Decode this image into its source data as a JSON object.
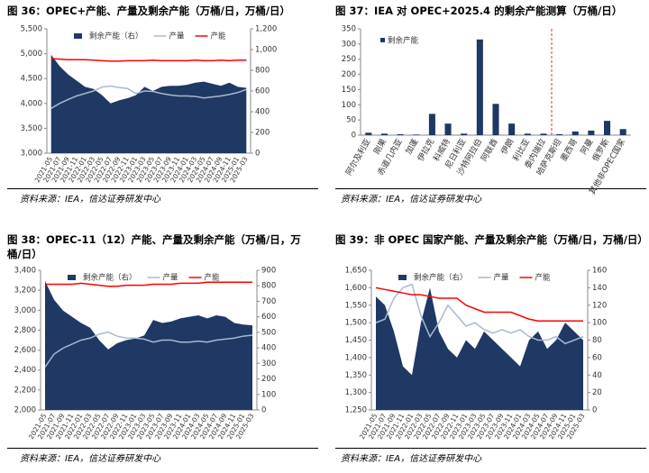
{
  "chart_data": [
    {
      "type": "combo",
      "title": "图 36：OPEC+产能、产量及剩余产能（万桶/日，万桶/日）",
      "source": "资料来源：IEA，信达证券研发中心",
      "categories": [
        "2021-05",
        "2021-07",
        "2021-09",
        "2021-11",
        "2022-01",
        "2022-03",
        "2022-05",
        "2022-07",
        "2022-09",
        "2022-11",
        "2023-01",
        "2023-03",
        "2023-05",
        "2023-07",
        "2023-09",
        "2023-11",
        "2024-01",
        "2024-03",
        "2024-05",
        "2024-07",
        "2024-09",
        "2024-11",
        "2025-01",
        "2025-03"
      ],
      "ylim": [
        3000,
        5500
      ],
      "yticks": [
        {
          "value": 3000,
          "label": "3,000"
        },
        {
          "value": 3500,
          "label": "3,500"
        },
        {
          "value": 4000,
          "label": "4,000"
        },
        {
          "value": 4500,
          "label": "4,500"
        },
        {
          "value": 5000,
          "label": "5,000"
        },
        {
          "value": 5500,
          "label": "5,500"
        }
      ],
      "y2lim": [
        0,
        1200
      ],
      "y2ticks": [
        0,
        200,
        400,
        600,
        800,
        {
          "value": 1000,
          "label": "1,000"
        },
        {
          "value": 1200,
          "label": "1,200"
        }
      ],
      "series": [
        {
          "name": "剩余产能（右）",
          "type": "area",
          "axis": "y2",
          "color": "#1f3864",
          "values": [
            950,
            840,
            760,
            700,
            640,
            620,
            560,
            480,
            510,
            530,
            560,
            640,
            600,
            640,
            650,
            650,
            660,
            680,
            690,
            670,
            650,
            680,
            640,
            630
          ]
        },
        {
          "name": "产量",
          "type": "line",
          "color": "#a9b8d3",
          "values": [
            3900,
            4000,
            4080,
            4150,
            4200,
            4250,
            4330,
            4350,
            4320,
            4300,
            4200,
            4250,
            4240,
            4200,
            4170,
            4150,
            4150,
            4140,
            4110,
            4130,
            4150,
            4180,
            4220,
            4280
          ]
        },
        {
          "name": "产能",
          "type": "line",
          "color": "#ff0000",
          "values": [
            4900,
            4890,
            4880,
            4880,
            4880,
            4870,
            4860,
            4850,
            4850,
            4860,
            4860,
            4860,
            4870,
            4860,
            4860,
            4860,
            4860,
            4870,
            4860,
            4860,
            4870,
            4860,
            4870,
            4870
          ]
        }
      ]
    },
    {
      "type": "bar",
      "title": "图 37：IEA 对 OPEC+2025.4 的剩余产能测算（万桶/日）",
      "source": "资料来源：IEA，信达证券研发中心",
      "categories": [
        "阿尔及利亚",
        "刚果",
        "赤道几内亚",
        "加蓬",
        "伊拉克",
        "科威特",
        "尼日利亚",
        "沙特阿拉伯",
        "阿联酋",
        "伊朗",
        "利比亚",
        "委内瑞拉",
        "哈萨克斯坦",
        "墨西哥",
        "阿曼",
        "俄罗斯",
        "其他非OPEC国家"
      ],
      "series": [
        {
          "name": "剩余产能",
          "color": "#1f3864",
          "values": [
            8,
            5,
            3,
            2,
            70,
            38,
            5,
            315,
            103,
            38,
            5,
            5,
            3,
            12,
            15,
            47,
            20
          ]
        }
      ],
      "ylim": [
        0,
        350
      ],
      "yticks": [
        0,
        50,
        100,
        150,
        200,
        250,
        300,
        350
      ]
    },
    {
      "type": "combo",
      "title": "图 38：OPEC-11（12）产能、产量及剩余产能（万桶/日，万桶/日）",
      "source": "资料来源：IEA，信达证券研发中心",
      "categories": [
        "2021-05",
        "2021-07",
        "2021-09",
        "2021-11",
        "2022-01",
        "2022-03",
        "2022-05",
        "2022-07",
        "2022-09",
        "2022-11",
        "2023-01",
        "2023-03",
        "2023-05",
        "2023-07",
        "2023-09",
        "2023-11",
        "2024-01",
        "2024-03",
        "2024-05",
        "2024-07",
        "2024-09",
        "2024-11",
        "2025-01",
        "2025-03"
      ],
      "ylim": [
        2000,
        3400
      ],
      "yticks": [
        {
          "value": 2000,
          "label": "2,000"
        },
        {
          "value": 2200,
          "label": "2,200"
        },
        {
          "value": 2400,
          "label": "2,400"
        },
        {
          "value": 2600,
          "label": "2,600"
        },
        {
          "value": 2800,
          "label": "2,800"
        },
        {
          "value": 3000,
          "label": "3,000"
        },
        {
          "value": 3200,
          "label": "3,200"
        },
        {
          "value": 3400,
          "label": "3,400"
        }
      ],
      "y2lim": [
        0,
        900
      ],
      "y2ticks": [
        0,
        100,
        200,
        300,
        400,
        500,
        600,
        700,
        800,
        900
      ],
      "series": [
        {
          "name": "剩余产能（右）",
          "type": "area",
          "axis": "y2",
          "color": "#1f3864",
          "values": [
            830,
            710,
            640,
            600,
            560,
            530,
            450,
            390,
            430,
            450,
            460,
            480,
            580,
            560,
            570,
            590,
            600,
            610,
            590,
            610,
            600,
            560,
            550,
            545
          ]
        },
        {
          "name": "产量",
          "type": "line",
          "color": "#a9b8d3",
          "values": [
            2430,
            2560,
            2620,
            2660,
            2700,
            2720,
            2760,
            2780,
            2740,
            2720,
            2720,
            2710,
            2680,
            2700,
            2700,
            2680,
            2680,
            2690,
            2680,
            2700,
            2710,
            2720,
            2740,
            2750
          ]
        },
        {
          "name": "产能",
          "type": "line",
          "color": "#ff0000",
          "values": [
            3260,
            3260,
            3260,
            3260,
            3270,
            3260,
            3250,
            3240,
            3240,
            3250,
            3250,
            3250,
            3260,
            3260,
            3260,
            3270,
            3270,
            3270,
            3280,
            3280,
            3280,
            3280,
            3280,
            3280
          ]
        }
      ]
    },
    {
      "type": "combo",
      "title": "图 39：非 OPEC 国家产能、产量及剩余产能（万桶/日，万桶/日）",
      "source": "资料来源：IEA，信达证券研发中心",
      "categories": [
        "2021-05",
        "2021-07",
        "2021-09",
        "2021-11",
        "2022-01",
        "2022-03",
        "2022-05",
        "2022-07",
        "2022-09",
        "2022-11",
        "2023-01",
        "2023-03",
        "2023-05",
        "2023-07",
        "2023-09",
        "2023-11",
        "2024-01",
        "2024-03",
        "2024-05",
        "2024-07",
        "2024-09",
        "2024-11",
        "2025-01",
        "2025-03"
      ],
      "ylim": [
        1250,
        1650
      ],
      "yticks": [
        {
          "value": 1250,
          "label": "1,250"
        },
        {
          "value": 1300,
          "label": "1,300"
        },
        {
          "value": 1350,
          "label": "1,350"
        },
        {
          "value": 1400,
          "label": "1,400"
        },
        {
          "value": 1450,
          "label": "1,450"
        },
        {
          "value": 1500,
          "label": "1,500"
        },
        {
          "value": 1550,
          "label": "1,550"
        },
        {
          "value": 1600,
          "label": "1,600"
        },
        {
          "value": 1650,
          "label": "1,650"
        }
      ],
      "y2lim": [
        0,
        160
      ],
      "y2ticks": [
        0,
        20,
        40,
        60,
        80,
        100,
        120,
        140,
        160
      ],
      "series": [
        {
          "name": "剩余产能（右）",
          "type": "area",
          "axis": "y2",
          "color": "#1f3864",
          "values": [
            130,
            120,
            90,
            50,
            40,
            100,
            140,
            90,
            70,
            60,
            80,
            70,
            90,
            80,
            70,
            60,
            50,
            80,
            90,
            70,
            80,
            100,
            90,
            80
          ]
        },
        {
          "name": "产量",
          "type": "line",
          "color": "#a9b8d3",
          "values": [
            1500,
            1510,
            1570,
            1600,
            1610,
            1520,
            1460,
            1500,
            1550,
            1520,
            1490,
            1500,
            1480,
            1470,
            1480,
            1470,
            1480,
            1460,
            1450,
            1450,
            1460,
            1440,
            1450,
            1460
          ]
        },
        {
          "name": "产能",
          "type": "line",
          "color": "#ff0000",
          "values": [
            1600,
            1595,
            1590,
            1585,
            1580,
            1580,
            1575,
            1570,
            1570,
            1570,
            1550,
            1540,
            1530,
            1530,
            1530,
            1530,
            1520,
            1510,
            1505,
            1505,
            1505,
            1505,
            1505,
            1505
          ]
        }
      ]
    }
  ]
}
